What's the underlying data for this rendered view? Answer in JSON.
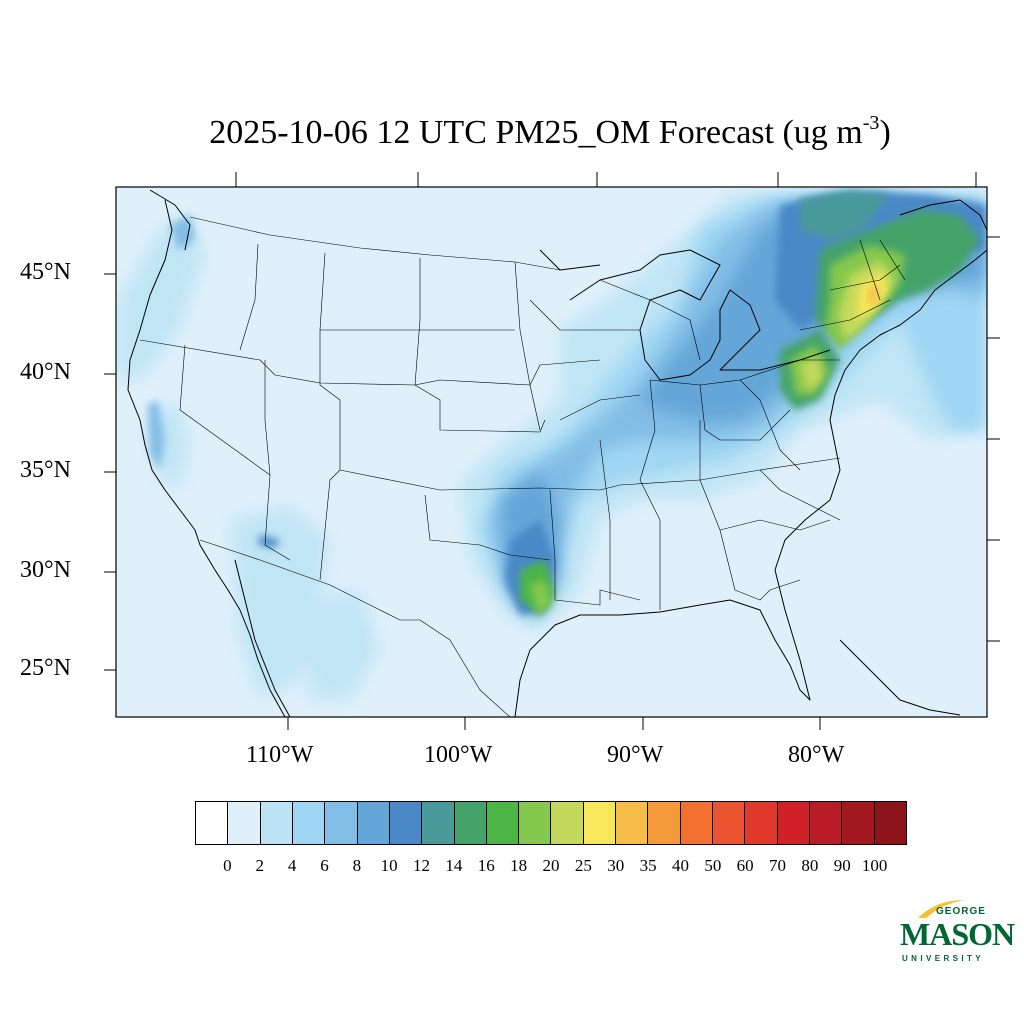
{
  "title": {
    "main": "2025-10-06 12 UTC PM25_OM Forecast (ug m",
    "sup": "-3",
    "close": ")"
  },
  "map": {
    "lat_labels": [
      "45°N",
      "40°N",
      "35°N",
      "30°N",
      "25°N"
    ],
    "lon_labels": [
      "110°W",
      "100°W",
      "90°W",
      "80°W"
    ],
    "colors": {
      "land_background": "#dff0fa",
      "border": "#000000"
    }
  },
  "colorbar": {
    "colors": [
      "#ffffff",
      "#dff0fa",
      "#bde4f5",
      "#9fd6f3",
      "#82bde6",
      "#65a6d8",
      "#4a88c7",
      "#4a9a9a",
      "#45a36a",
      "#4bb546",
      "#85c84e",
      "#c4d95c",
      "#f7e75a",
      "#f6bd48",
      "#f59a3a",
      "#f27130",
      "#ea5430",
      "#e0392b",
      "#d02129",
      "#b91c26",
      "#a3171f",
      "#8e141b"
    ],
    "labels": [
      "0",
      "2",
      "4",
      "6",
      "8",
      "10",
      "12",
      "14",
      "16",
      "18",
      "20",
      "25",
      "30",
      "35",
      "40",
      "50",
      "60",
      "70",
      "80",
      "90",
      "100"
    ]
  },
  "logo": {
    "george": "GEORGE",
    "mason": "MASON",
    "university": "UNIVERSITY"
  }
}
